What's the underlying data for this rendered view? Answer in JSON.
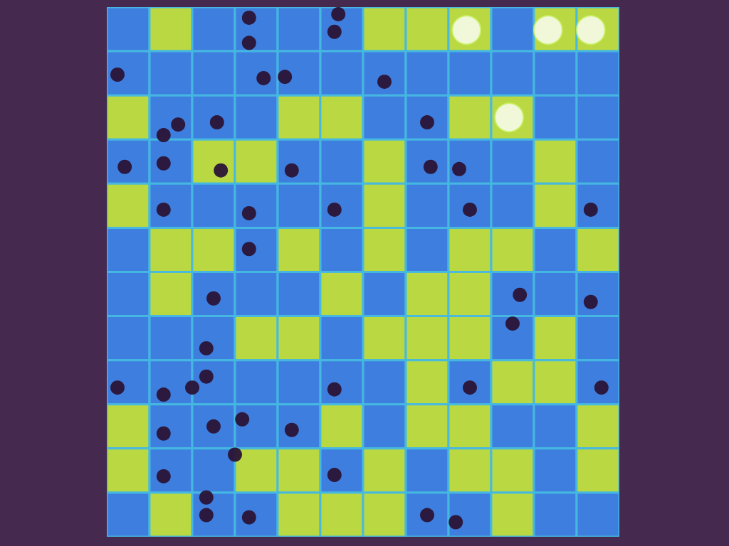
{
  "chart_data": {
    "type": "heatmap",
    "xlim": [
      0,
      12
    ],
    "ylim": [
      0,
      12
    ],
    "tick_labels": false,
    "grid": false,
    "color_range": [
      0,
      1
    ],
    "cells": [
      [
        0.35,
        0.85,
        0.35,
        0.35,
        0.35,
        0.35,
        0.85,
        0.85,
        0.85,
        0.35,
        0.85,
        0.85
      ],
      [
        0.35,
        0.35,
        0.35,
        0.35,
        0.35,
        0.35,
        0.35,
        0.35,
        0.35,
        0.35,
        0.35,
        0.35
      ],
      [
        0.85,
        0.35,
        0.35,
        0.35,
        0.85,
        0.85,
        0.35,
        0.35,
        0.85,
        0.85,
        0.35,
        0.35
      ],
      [
        0.35,
        0.35,
        0.85,
        0.85,
        0.35,
        0.35,
        0.85,
        0.35,
        0.35,
        0.35,
        0.85,
        0.35
      ],
      [
        0.85,
        0.35,
        0.35,
        0.35,
        0.35,
        0.35,
        0.85,
        0.35,
        0.35,
        0.35,
        0.85,
        0.35
      ],
      [
        0.35,
        0.85,
        0.85,
        0.35,
        0.85,
        0.35,
        0.85,
        0.35,
        0.85,
        0.85,
        0.35,
        0.85
      ],
      [
        0.35,
        0.85,
        0.35,
        0.35,
        0.35,
        0.85,
        0.35,
        0.85,
        0.85,
        0.35,
        0.35,
        0.35
      ],
      [
        0.35,
        0.35,
        0.35,
        0.85,
        0.85,
        0.35,
        0.85,
        0.85,
        0.85,
        0.35,
        0.85,
        0.35
      ],
      [
        0.35,
        0.35,
        0.35,
        0.35,
        0.35,
        0.35,
        0.35,
        0.85,
        0.35,
        0.85,
        0.85,
        0.35
      ],
      [
        0.85,
        0.35,
        0.35,
        0.35,
        0.35,
        0.85,
        0.35,
        0.85,
        0.85,
        0.35,
        0.35,
        0.85
      ],
      [
        0.85,
        0.35,
        0.35,
        0.85,
        0.85,
        0.35,
        0.85,
        0.35,
        0.85,
        0.85,
        0.35,
        0.85
      ],
      [
        0.35,
        0.85,
        0.35,
        0.35,
        0.85,
        0.85,
        0.85,
        0.35,
        0.35,
        0.85,
        0.35,
        0.35
      ]
    ],
    "series": [
      {
        "type": "scatter",
        "color": "#2a1436",
        "marker": "circle",
        "x": [
          3.33,
          3.33,
          5.42,
          5.33,
          0.25,
          3.67,
          4.17,
          6.5,
          1.33,
          1.33,
          0.42,
          2.58,
          7.5,
          7.58,
          8.25,
          8.5,
          1.33,
          3.33,
          3.33,
          5.33,
          4.33,
          2.5,
          9.67,
          9.5,
          11.33,
          2.33,
          2.33,
          0.25,
          1.33,
          2.0,
          1.33,
          2.5,
          3.17,
          3.0,
          4.33,
          5.33,
          8.5,
          11.58,
          1.33,
          2.33,
          2.33,
          3.33,
          5.33,
          8.17,
          7.5,
          11.33,
          1.67,
          2.67
        ],
        "y": [
          0.24,
          0.81,
          0.16,
          0.56,
          1.53,
          1.61,
          1.58,
          1.69,
          2.9,
          3.54,
          3.62,
          2.61,
          2.61,
          3.62,
          3.67,
          4.59,
          4.59,
          4.67,
          5.48,
          4.59,
          3.7,
          6.6,
          6.52,
          7.17,
          6.68,
          7.73,
          8.37,
          8.62,
          8.78,
          8.62,
          9.66,
          9.5,
          9.34,
          10.14,
          9.58,
          8.66,
          8.62,
          8.62,
          10.63,
          11.11,
          11.51,
          11.56,
          10.6,
          11.67,
          11.51,
          4.59,
          2.66,
          3.7
        ]
      },
      {
        "type": "scatter",
        "color": "#c8f060",
        "marker": "ring",
        "x": [
          8.42,
          10.33,
          11.33,
          9.42
        ],
        "y": [
          0.52,
          0.52,
          0.52,
          2.5
        ]
      }
    ]
  }
}
